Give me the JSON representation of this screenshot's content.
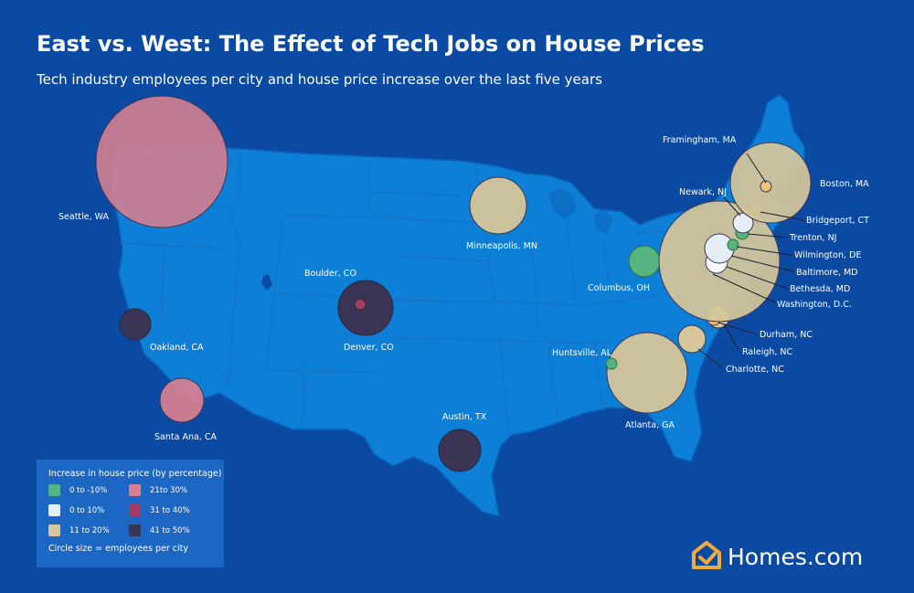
{
  "title": "East vs. West: The Effect of Tech Jobs on House Prices",
  "subtitle": "Tech industry employees per city and house price increase over the last five years",
  "colors": {
    "background": "#0b4aa3",
    "map_land": "#0d7fd6",
    "legend_bg": "#1d67c4",
    "brand_orange": "#f2a93b"
  },
  "legend": {
    "title": "Increase in house price (by percentage)",
    "items": [
      {
        "label": "0 to -10%",
        "color": "#56b57e"
      },
      {
        "label": "21to 30%",
        "color": "#d97f8f"
      },
      {
        "label": "0 to 10%",
        "color": "#e6eef5"
      },
      {
        "label": "31 to 40%",
        "color": "#a33b62"
      },
      {
        "label": "11 to 20%",
        "color": "#d6c69a"
      },
      {
        "label": "41 to 50%",
        "color": "#3a3554"
      }
    ],
    "size_note": "Circle size = employees per city"
  },
  "cities": [
    {
      "name": "Seattle, WA",
      "category": "21to 30%"
    },
    {
      "name": "Oakland, CA",
      "category": "41 to 50%"
    },
    {
      "name": "Santa Ana, CA",
      "category": "21to 30%"
    },
    {
      "name": "Denver, CO",
      "category": "41 to 50%"
    },
    {
      "name": "Boulder, CO",
      "category": "31 to 40%"
    },
    {
      "name": "Austin, TX",
      "category": "41 to 50%"
    },
    {
      "name": "Minneapolis, MN",
      "category": "11 to 20%"
    },
    {
      "name": "Columbus, OH",
      "category": "0 to -10%"
    },
    {
      "name": "Atlanta, GA",
      "category": "11 to 20%"
    },
    {
      "name": "Huntsville, AL",
      "category": "0 to -10%"
    },
    {
      "name": "Charlotte, NC",
      "category": "11 to 20%"
    },
    {
      "name": "Raleigh, NC",
      "category": "11 to 20%"
    },
    {
      "name": "Durham, NC",
      "category": "11 to 20%"
    },
    {
      "name": "Washington, D.C.",
      "category": "11 to 20%"
    },
    {
      "name": "Bethesda, MD",
      "category": "0 to 10%"
    },
    {
      "name": "Baltimore, MD",
      "category": "0 to 10%"
    },
    {
      "name": "Wilmington, DE",
      "category": "0 to -10%"
    },
    {
      "name": "Trenton, NJ",
      "category": "0 to -10%"
    },
    {
      "name": "Newark, NJ",
      "category": "0 to 10%"
    },
    {
      "name": "Bridgeport, CT",
      "category": "0 to -10%"
    },
    {
      "name": "Boston, MA",
      "category": "11 to 20%"
    },
    {
      "name": "Framingham, MA",
      "category": "11 to 20%"
    }
  ],
  "brand": {
    "logo_icon": "house-icon",
    "name": "Homes",
    "domain": ".com"
  }
}
